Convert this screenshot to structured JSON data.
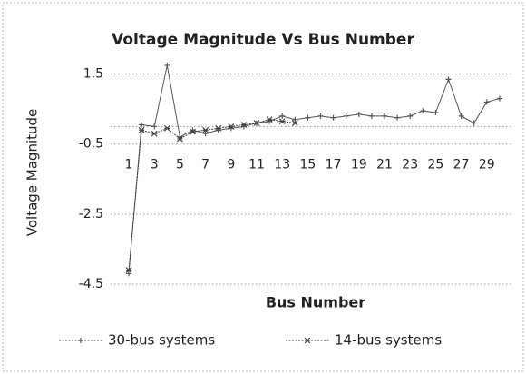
{
  "chart_data": {
    "type": "line",
    "title": "Voltage Magnitude  Vs Bus Number",
    "x_label": "Bus Number",
    "y_label": "Voltage Magnitude",
    "categories": [
      "1",
      null,
      "3",
      null,
      "5",
      null,
      "7",
      null,
      "9",
      null,
      "11",
      null,
      "13",
      null,
      "15",
      null,
      "17",
      null,
      "19",
      null,
      "21",
      null,
      "23",
      null,
      "25",
      null,
      "27",
      null,
      "29",
      null
    ],
    "series": [
      {
        "name": "30-bus systems",
        "color": "#555555",
        "marker": "plus",
        "values": [
          -4.2,
          0.05,
          0.0,
          1.75,
          -0.3,
          -0.1,
          -0.2,
          -0.1,
          -0.05,
          0.0,
          0.1,
          0.15,
          0.3,
          0.2,
          0.25,
          0.3,
          0.25,
          0.3,
          0.35,
          0.3,
          0.3,
          0.25,
          0.3,
          0.45,
          0.4,
          1.35,
          0.3,
          0.1,
          0.7,
          0.8
        ]
      },
      {
        "name": "14-bus systems",
        "color": "#444444",
        "marker": "star",
        "values": [
          -4.1,
          -0.1,
          -0.2,
          -0.05,
          -0.35,
          -0.15,
          -0.1,
          -0.05,
          0.0,
          0.05,
          0.1,
          0.2,
          0.15,
          0.1,
          null,
          null,
          null,
          null,
          null,
          null,
          null,
          null,
          null,
          null,
          null,
          null,
          null,
          null,
          null,
          null
        ]
      }
    ],
    "ylim": [
      -4.5,
      1.8
    ],
    "yticks": [
      -4.5,
      -2.5,
      -0.5,
      1.5
    ],
    "grid": true,
    "legend": "bottom"
  }
}
